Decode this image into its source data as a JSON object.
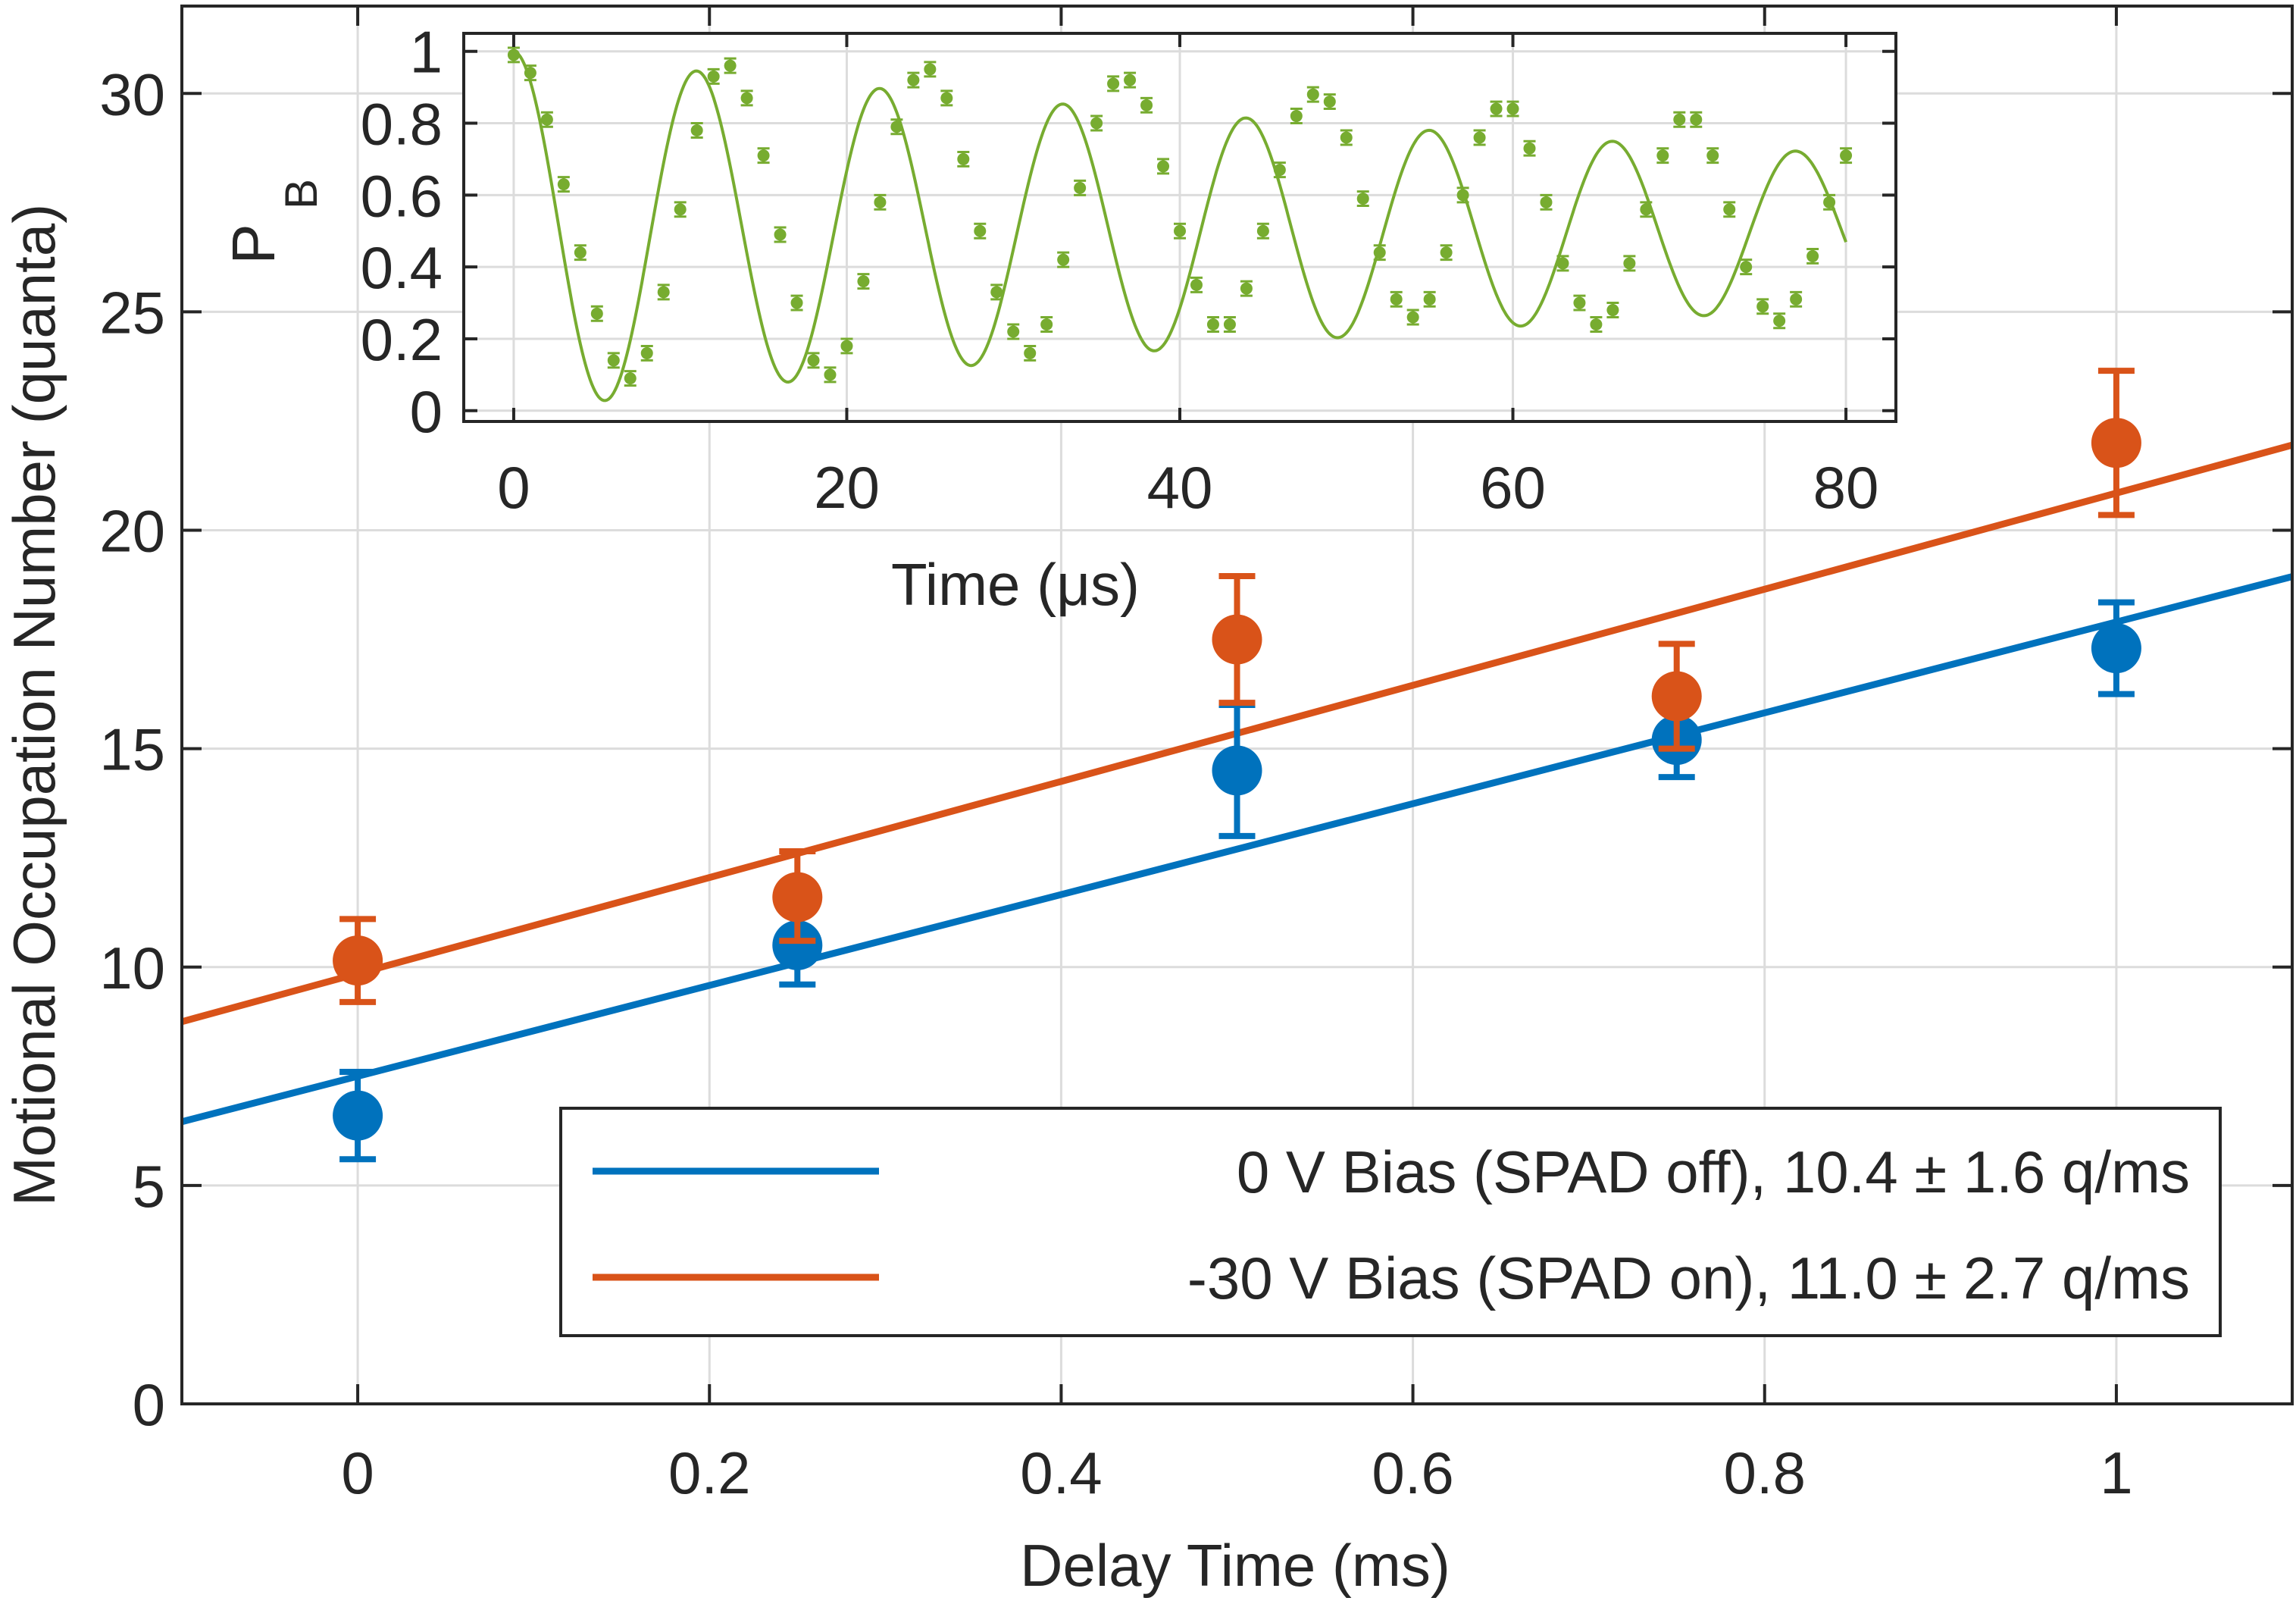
{
  "chart_data": [
    {
      "type": "scatter",
      "title": "",
      "xlabel": "Delay Time (ms)",
      "ylabel": "Motional Occupation Number (quanta)",
      "xlim": [
        -0.1,
        1.1
      ],
      "ylim": [
        0,
        32
      ],
      "xticks": [
        0,
        0.2,
        0.4,
        0.6,
        0.8,
        1
      ],
      "xtick_labels": [
        "0",
        "0.2",
        "0.4",
        "0.6",
        "0.8",
        "1"
      ],
      "yticks": [
        0,
        5,
        10,
        15,
        20,
        25,
        30
      ],
      "ytick_labels": [
        "0",
        "5",
        "10",
        "15",
        "20",
        "25",
        "30"
      ],
      "grid": true,
      "legend_position": "bottom-right",
      "series": [
        {
          "name": "0 V Bias (SPAD off), 10.4 ± 1.6 q/ms",
          "color": "#0072BD",
          "x": [
            0,
            0.25,
            0.5,
            0.75,
            1
          ],
          "y": [
            6.6,
            10.5,
            14.5,
            15.2,
            17.3
          ],
          "err_low": [
            1.0,
            0.9,
            1.5,
            0.85,
            1.05
          ],
          "err_high": [
            1.0,
            0.9,
            1.5,
            0.85,
            1.05
          ],
          "fit": {
            "intercept": 7.5,
            "slope": 10.4
          }
        },
        {
          "name": "-30 V Bias (SPAD on), 11.0 ± 2.7 q/ms",
          "color": "#D95319",
          "x": [
            0,
            0.25,
            0.5,
            0.75,
            1
          ],
          "y": [
            10.15,
            11.6,
            17.5,
            16.2,
            22.0
          ],
          "err_low": [
            0.95,
            1.0,
            1.45,
            1.2,
            1.65
          ],
          "err_high": [
            0.95,
            1.05,
            1.45,
            1.2,
            1.65
          ],
          "fit": {
            "intercept": 9.85,
            "slope": 11.0
          }
        }
      ]
    },
    {
      "type": "scatter",
      "title": "",
      "xlabel": "Time (μs)",
      "ylabel_main": "P",
      "ylabel_sub": "B",
      "xlim": [
        -3,
        83
      ],
      "ylim": [
        -0.03,
        1.05
      ],
      "xticks": [
        0,
        20,
        40,
        60,
        80
      ],
      "xtick_labels": [
        "0",
        "20",
        "40",
        "60",
        "80"
      ],
      "yticks": [
        0,
        0.2,
        0.4,
        0.6,
        0.8,
        1
      ],
      "ytick_labels": [
        "0",
        "0.2",
        "0.4",
        "0.6",
        "0.8",
        "1"
      ],
      "grid": true,
      "series": [
        {
          "name": "P_B",
          "color": "#77AC30",
          "x": [
            0,
            1,
            2,
            3,
            4,
            5,
            6,
            7,
            8,
            9,
            10,
            11,
            12,
            13,
            14,
            15,
            16,
            17,
            18,
            19,
            20,
            21,
            22,
            23,
            24,
            25,
            26,
            27,
            28,
            29,
            30,
            31,
            32,
            33,
            34,
            35,
            36,
            37,
            38,
            39,
            40,
            41,
            42,
            43,
            44,
            45,
            46,
            47,
            48,
            49,
            50,
            51,
            52,
            53,
            54,
            55,
            56,
            57,
            58,
            59,
            60,
            61,
            62,
            63,
            64,
            65,
            66,
            67,
            68,
            69,
            70,
            71,
            72,
            73,
            74,
            75,
            76,
            77,
            78,
            79,
            80
          ],
          "y": [
            0.99,
            0.94,
            0.81,
            0.63,
            0.44,
            0.27,
            0.14,
            0.09,
            0.16,
            0.33,
            0.56,
            0.78,
            0.93,
            0.96,
            0.87,
            0.71,
            0.49,
            0.3,
            0.14,
            0.1,
            0.18,
            0.36,
            0.58,
            0.79,
            0.92,
            0.95,
            0.87,
            0.7,
            0.5,
            0.33,
            0.22,
            0.16,
            0.24,
            0.42,
            0.62,
            0.8,
            0.91,
            0.92,
            0.85,
            0.68,
            0.5,
            0.35,
            0.24,
            0.24,
            0.34,
            0.5,
            0.67,
            0.82,
            0.88,
            0.86,
            0.76,
            0.59,
            0.44,
            0.31,
            0.26,
            0.31,
            0.44,
            0.6,
            0.76,
            0.84,
            0.84,
            0.73,
            0.58,
            0.41,
            0.3,
            0.24,
            0.28,
            0.41,
            0.56,
            0.71,
            0.81,
            0.81,
            0.71,
            0.56,
            0.4,
            0.29,
            0.25,
            0.31,
            0.43,
            0.58,
            0.71
          ],
          "err": 0.02
        }
      ],
      "fit_model": {
        "period_us": 11.0,
        "amplitude": 0.5,
        "decay_us": 95,
        "offset": 0.5
      }
    }
  ]
}
